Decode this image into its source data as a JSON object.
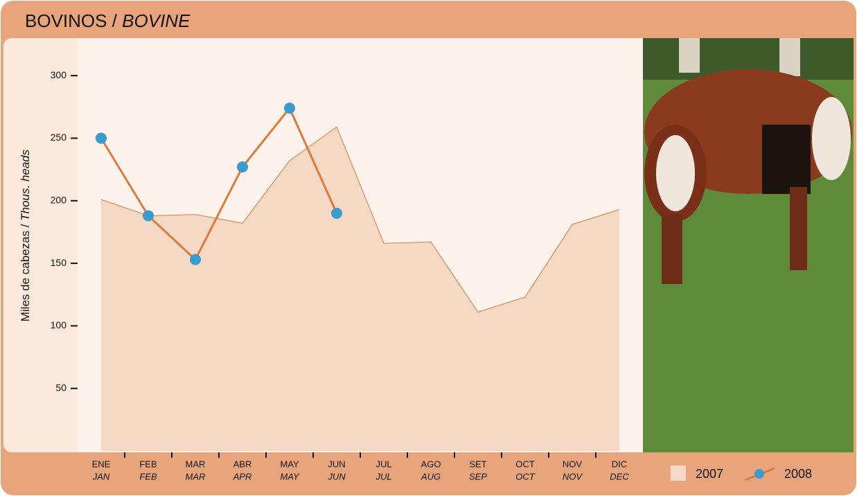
{
  "chart_data": {
    "type": "line",
    "title": "BOVINOS /",
    "title_italic": "BOVINE",
    "y_label": "Miles de cabezas /",
    "y_label_italic": "Thous. heads",
    "categories": [
      "ENE",
      "FEB",
      "MAR",
      "ABR",
      "MAY",
      "JUN",
      "JUL",
      "AGO",
      "SET",
      "OCT",
      "NOV",
      "DIC"
    ],
    "categories_italic": [
      "JAN",
      "FEB",
      "MAR",
      "APR",
      "MAY",
      "JUN",
      "JUL",
      "AUG",
      "SEP",
      "OCT",
      "NOV",
      "DEC"
    ],
    "series": [
      {
        "name": "2007",
        "style": "area",
        "color": "#f6d9c4",
        "line_color": "#e07a3c",
        "values": [
          201,
          188,
          189,
          182,
          232,
          259,
          166,
          167,
          111,
          123,
          181,
          193
        ]
      },
      {
        "name": "2008",
        "style": "line",
        "color": "#e07a3c",
        "marker_color": "#3a9bd0",
        "values": [
          250,
          188,
          153,
          227,
          274,
          190,
          null,
          null,
          null,
          null,
          null,
          null
        ]
      }
    ],
    "ylim": [
      0,
      330
    ],
    "yticks": [
      50,
      100,
      150,
      200,
      250,
      300
    ]
  }
}
